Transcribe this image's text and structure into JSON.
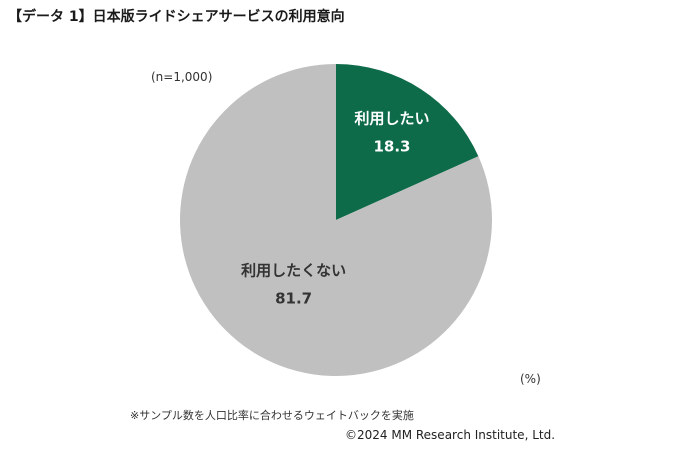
{
  "title": "【データ 1】日本版ライドシェアサービスの利用意向",
  "sample_size": "(n=1,000)",
  "unit": "(%)",
  "note": "※サンプル数を人口比率に合わせるウェイトバックを実施",
  "copyright": "©2024 MM Research Institute, Ltd.",
  "chart_data": {
    "type": "pie",
    "start_angle": "12 o'clock",
    "direction": "clockwise",
    "slices": [
      {
        "label": "利用したい",
        "value": 18.3,
        "value_text": "18.3",
        "color": "#0e6b4a",
        "text_color": "#ffffff"
      },
      {
        "label": "利用したくない",
        "value": 81.7,
        "value_text": "81.7",
        "color": "#c0c0c0",
        "text_color": "#333333"
      }
    ]
  }
}
